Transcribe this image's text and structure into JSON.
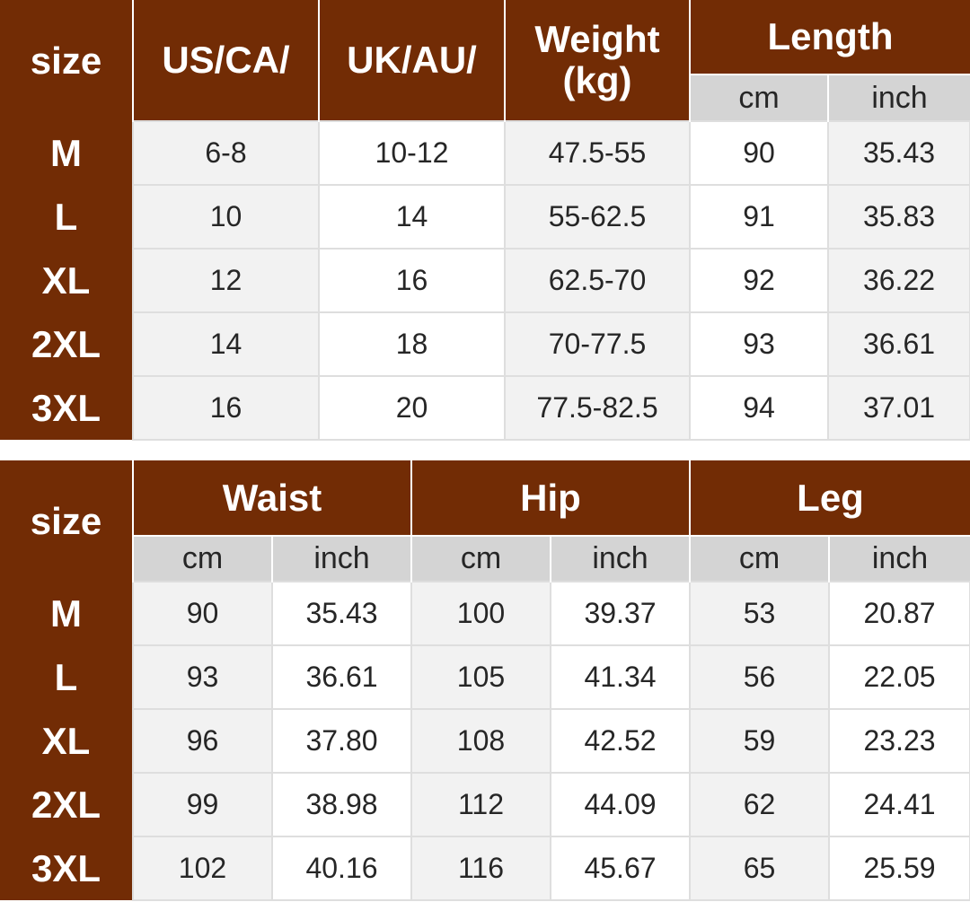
{
  "table1": {
    "headers": {
      "size": "size",
      "us": "US/CA/",
      "uk": "UK/AU/",
      "weight_line1": "Weight",
      "weight_line2": "(kg)",
      "length": "Length",
      "cm": "cm",
      "inch": "inch"
    },
    "rows": [
      {
        "size": "M",
        "us": "6-8",
        "uk": "10-12",
        "weight": "47.5-55",
        "cm": "90",
        "inch": "35.43"
      },
      {
        "size": "L",
        "us": "10",
        "uk": "14",
        "weight": "55-62.5",
        "cm": "91",
        "inch": "35.83"
      },
      {
        "size": "XL",
        "us": "12",
        "uk": "16",
        "weight": "62.5-70",
        "cm": "92",
        "inch": "36.22"
      },
      {
        "size": "2XL",
        "us": "14",
        "uk": "18",
        "weight": "70-77.5",
        "cm": "93",
        "inch": "36.61"
      },
      {
        "size": "3XL",
        "us": "16",
        "uk": "20",
        "weight": "77.5-82.5",
        "cm": "94",
        "inch": "37.01"
      }
    ]
  },
  "table2": {
    "headers": {
      "size": "size",
      "waist": "Waist",
      "hip": "Hip",
      "leg": "Leg",
      "cm": "cm",
      "inch": "inch"
    },
    "rows": [
      {
        "size": "M",
        "waist_cm": "90",
        "waist_inch": "35.43",
        "hip_cm": "100",
        "hip_inch": "39.37",
        "leg_cm": "53",
        "leg_inch": "20.87"
      },
      {
        "size": "L",
        "waist_cm": "93",
        "waist_inch": "36.61",
        "hip_cm": "105",
        "hip_inch": "41.34",
        "leg_cm": "56",
        "leg_inch": "22.05"
      },
      {
        "size": "XL",
        "waist_cm": "96",
        "waist_inch": "37.80",
        "hip_cm": "108",
        "hip_inch": "42.52",
        "leg_cm": "59",
        "leg_inch": "23.23"
      },
      {
        "size": "2XL",
        "waist_cm": "99",
        "waist_inch": "38.98",
        "hip_cm": "112",
        "hip_inch": "44.09",
        "leg_cm": "62",
        "leg_inch": "24.41"
      },
      {
        "size": "3XL",
        "waist_cm": "102",
        "waist_inch": "40.16",
        "hip_cm": "116",
        "hip_inch": "45.67",
        "leg_cm": "65",
        "leg_inch": "25.59"
      }
    ]
  },
  "colors": {
    "header_brown": "#722c05",
    "subheader_gray": "#d4d4d4",
    "cell_light": "#f2f2f2",
    "cell_white": "#ffffff",
    "text_dark": "#262626"
  }
}
